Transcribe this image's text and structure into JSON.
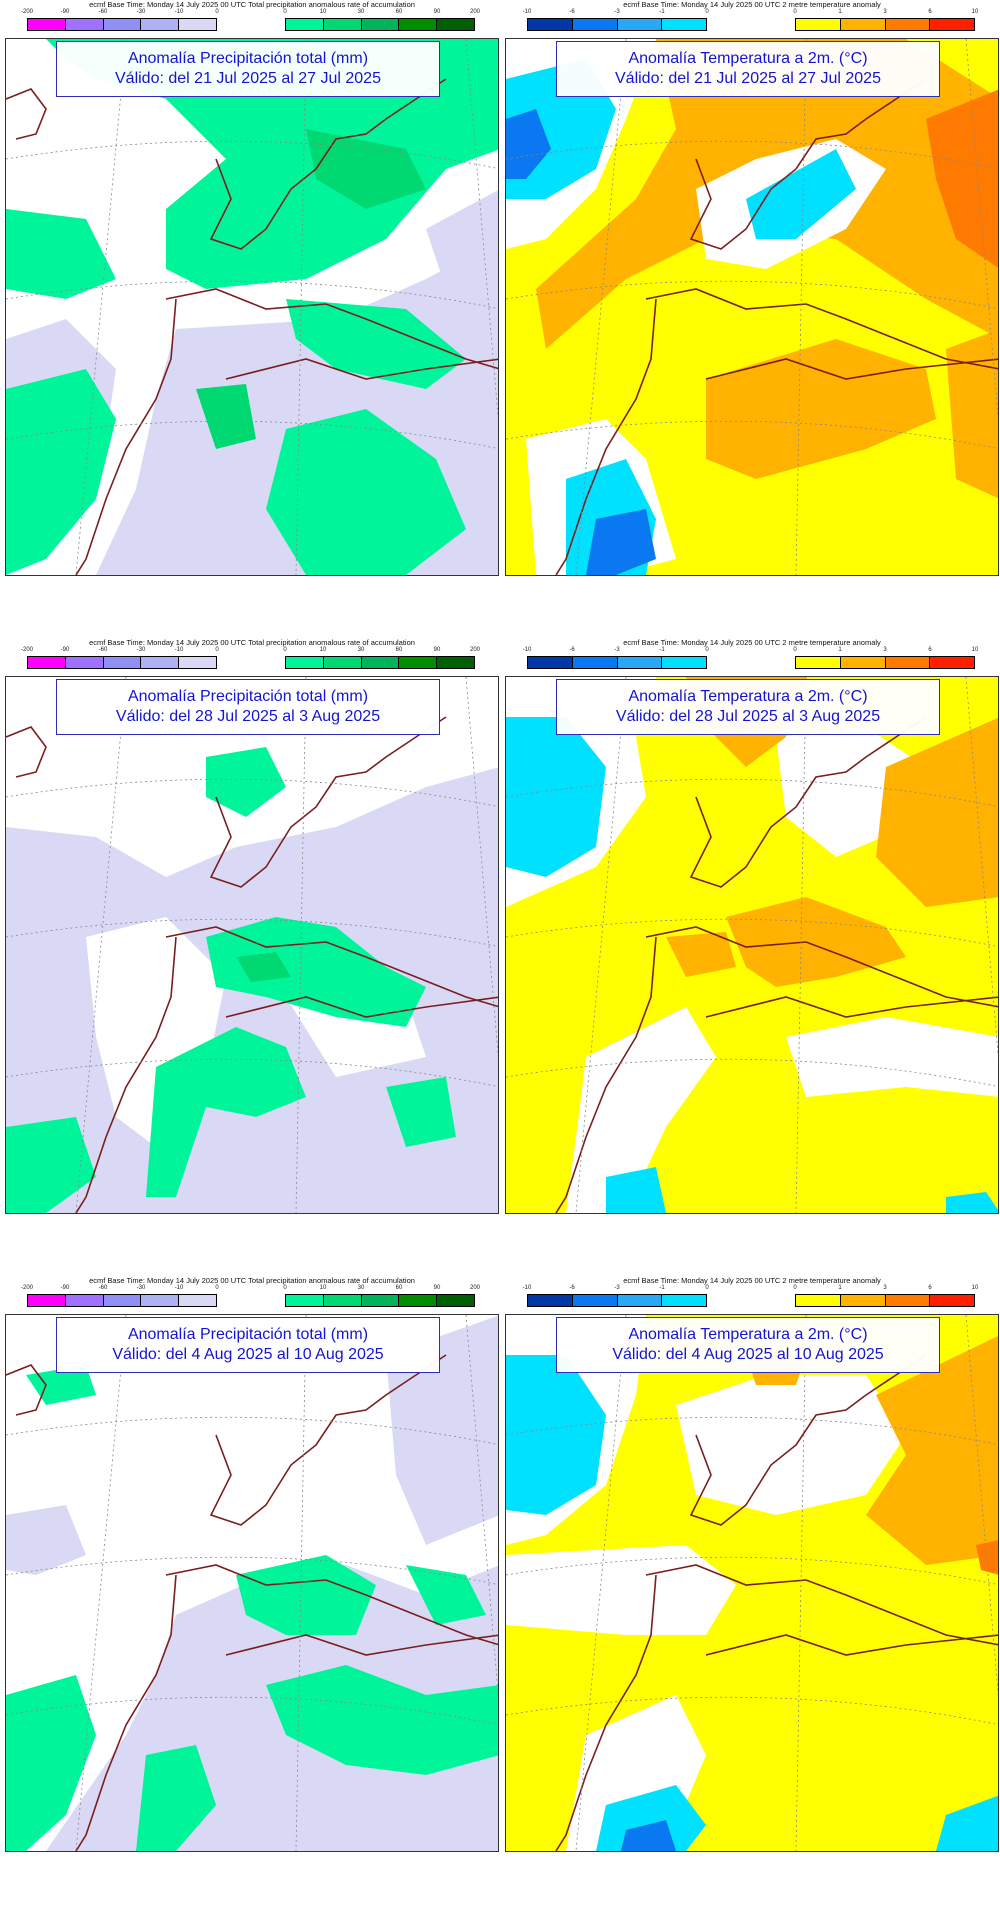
{
  "colorbars": {
    "precip": {
      "header": "ecmf  Base Time: Monday 14 July 2025 00 UTC Total precipitation anomalous rate of accumulation",
      "neg_ticks": [
        "-200",
        "-90",
        "-60",
        "-30",
        "-10",
        "0"
      ],
      "pos_ticks": [
        "0",
        "10",
        "30",
        "60",
        "90",
        "200"
      ],
      "neg_colors": [
        "#ff00ff",
        "#a070ff",
        "#8f8ff5",
        "#b0b0f5",
        "#d9d9f6"
      ],
      "pos_colors": [
        "#00f59a",
        "#00d872",
        "#00b45a",
        "#008d00",
        "#005f00"
      ]
    },
    "temp": {
      "header": "ecmf  Base Time: Monday 14 July 2025 00 UTC 2 metre temperature anomaly",
      "neg_ticks": [
        "-10",
        "-6",
        "-3",
        "-1",
        "0"
      ],
      "pos_ticks": [
        "0",
        "1",
        "3",
        "6",
        "10"
      ],
      "neg_colors": [
        "#0038a8",
        "#0a78f0",
        "#2aa8f8",
        "#00e0ff"
      ],
      "pos_colors": [
        "#ffff00",
        "#ffb200",
        "#ff7a00",
        "#ff2000"
      ]
    }
  },
  "panels": [
    {
      "title": "Anomalía Precipitación total (mm)",
      "validity": "Válido: del 21 Jul 2025 al 27 Jul 2025"
    },
    {
      "title": "Anomalía Temperatura a 2m. (°C)",
      "validity": "Válido: del 21 Jul 2025 al 27 Jul 2025"
    },
    {
      "title": "Anomalía Precipitación total (mm)",
      "validity": "Válido: del 28 Jul 2025 al 3 Aug 2025"
    },
    {
      "title": "Anomalía Temperatura a 2m. (°C)",
      "validity": "Válido: del 28 Jul 2025 al 3 Aug 2025"
    },
    {
      "title": "Anomalía Precipitación total (mm)",
      "validity": "Válido: del 4 Aug 2025 al 10 Aug 2025"
    },
    {
      "title": "Anomalía Temperatura a 2m. (°C)",
      "validity": "Válido: del 4 Aug 2025 al 10 Aug 2025"
    }
  ],
  "colors": {
    "coast": "#7a1e1e",
    "grid": "#888888",
    "precip_light": "#d9d9f6",
    "precip_green": "#00f59a",
    "precip_green_dark": "#00d872",
    "temp_yellow": "#ffff00",
    "temp_orange": "#ffb200",
    "temp_cyan": "#00e0ff",
    "temp_blue": "#0a78f0"
  }
}
